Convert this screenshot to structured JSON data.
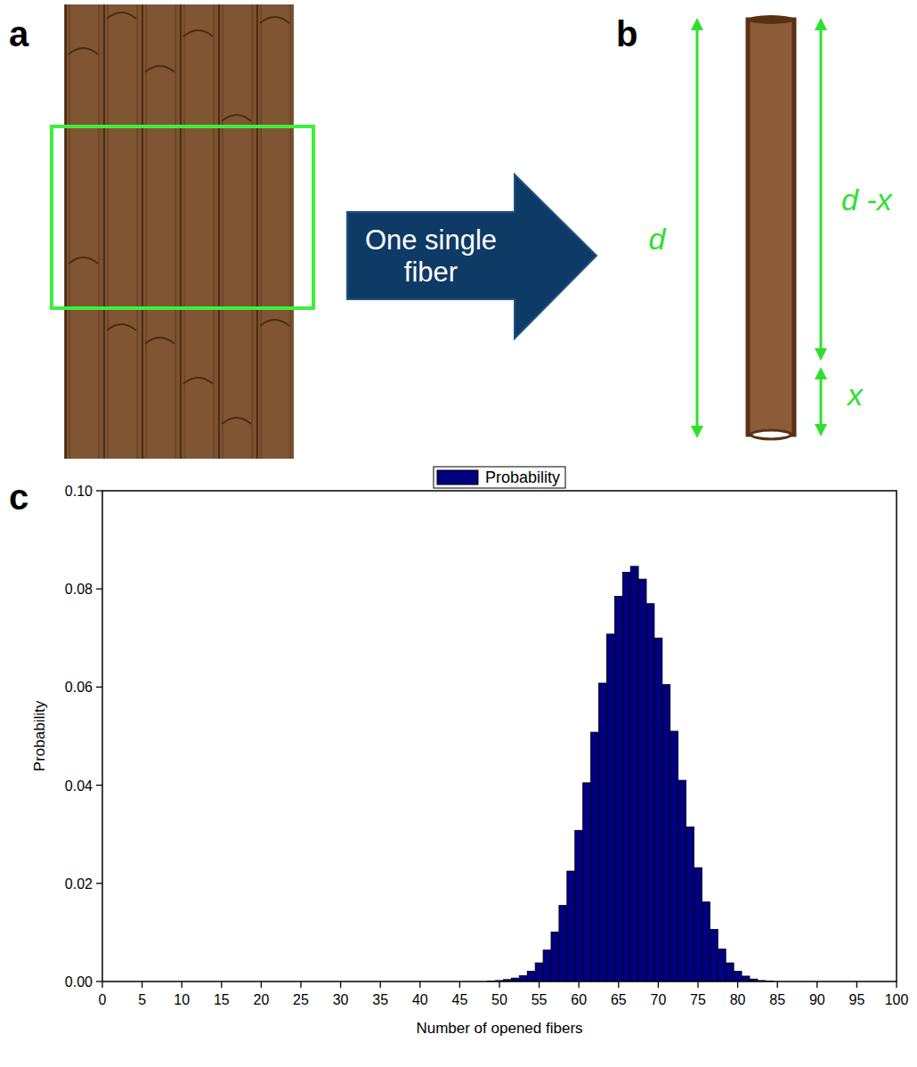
{
  "chart_data": {
    "type": "histogram",
    "x_label": "Number of opened fibers",
    "y_label": "Probability",
    "bins": [
      48.5,
      49.5,
      50.5,
      51.5,
      52.5,
      53.5,
      54.5,
      55.5,
      56.5,
      57.5,
      58.5,
      59.5,
      60.5,
      61.5,
      62.5,
      63.5,
      64.5,
      65.5,
      66.5,
      67.5,
      68.5,
      69.5,
      70.5,
      71.5,
      72.5,
      73.5,
      74.5,
      75.5,
      76.5,
      77.5,
      78.5,
      79.5,
      80.5,
      81.5,
      82.5,
      83.5,
      84.5
    ],
    "series": [
      {
        "name": "Probability",
        "color": "#000080",
        "values": [
          0.0001,
          0.0002,
          0.0004,
          0.0007,
          0.0012,
          0.0021,
          0.0038,
          0.0064,
          0.0101,
          0.0155,
          0.0225,
          0.0308,
          0.0405,
          0.0508,
          0.0608,
          0.0708,
          0.0785,
          0.0834,
          0.0846,
          0.082,
          0.077,
          0.07,
          0.0605,
          0.051,
          0.041,
          0.0315,
          0.0232,
          0.0162,
          0.0106,
          0.0066,
          0.0038,
          0.0021,
          0.0011,
          0.0005,
          0.0002,
          0.0001
        ]
      }
    ],
    "xlim": [
      0,
      100
    ],
    "xticks": [
      0,
      5,
      10,
      15,
      20,
      25,
      30,
      35,
      40,
      45,
      50,
      55,
      60,
      65,
      70,
      75,
      80,
      85,
      90,
      95,
      100
    ],
    "ylim": [
      0,
      0.1
    ],
    "yticks": [
      {
        "value": 0,
        "label": "0.00"
      },
      {
        "value": 0.02,
        "label": "0.02"
      },
      {
        "value": 0.04,
        "label": "0.04"
      },
      {
        "value": 0.06,
        "label": "0.06"
      },
      {
        "value": 0.08,
        "label": "0.08"
      },
      {
        "value": 0.1,
        "label": "0.10"
      }
    ],
    "legend": "top"
  },
  "diagram": {
    "panel_labels": [
      "a",
      "b",
      "c"
    ],
    "arrow_text": "One single fiber",
    "dimension_labels": [
      "d",
      "d -x",
      "x"
    ]
  }
}
